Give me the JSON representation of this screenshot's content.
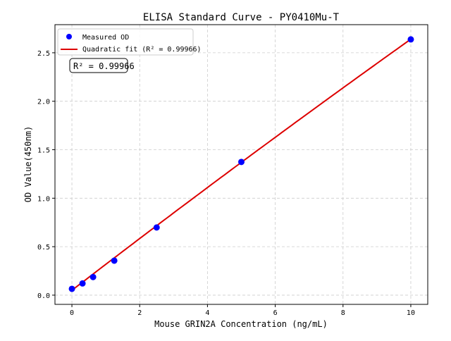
{
  "chart_data": {
    "type": "scatter",
    "title": "ELISA Standard Curve - PY0410Mu-T",
    "xlabel": "Mouse GRIN2A Concentration (ng/mL)",
    "ylabel": "OD Value(450nm)",
    "xlim": [
      -0.5,
      10.5
    ],
    "ylim": [
      -0.095,
      2.79
    ],
    "xticks": [
      0,
      2,
      4,
      6,
      8,
      10
    ],
    "yticks": [
      0.0,
      0.5,
      1.0,
      1.5,
      2.0,
      2.5
    ],
    "xtick_labels": [
      "0",
      "2",
      "4",
      "6",
      "8",
      "10"
    ],
    "ytick_labels": [
      "0.0",
      "0.5",
      "1.0",
      "1.5",
      "2.0",
      "2.5"
    ],
    "grid": true,
    "legend_position": "top-left",
    "series": [
      {
        "name": "Measured OD",
        "kind": "scatter",
        "color": "#0000ff",
        "x": [
          0,
          0.3125,
          0.625,
          1.25,
          2.5,
          5,
          10
        ],
        "y": [
          0.065,
          0.121,
          0.187,
          0.356,
          0.698,
          1.374,
          2.638
        ]
      },
      {
        "name": "Quadratic fit (R² = 0.99966)",
        "kind": "line",
        "color": "#dd0000",
        "coefficients": {
          "a": 0.05,
          "b": 0.269,
          "c": -0.001
        },
        "x_range": [
          0,
          10
        ]
      }
    ],
    "annotation": "R² = 0.99966"
  }
}
